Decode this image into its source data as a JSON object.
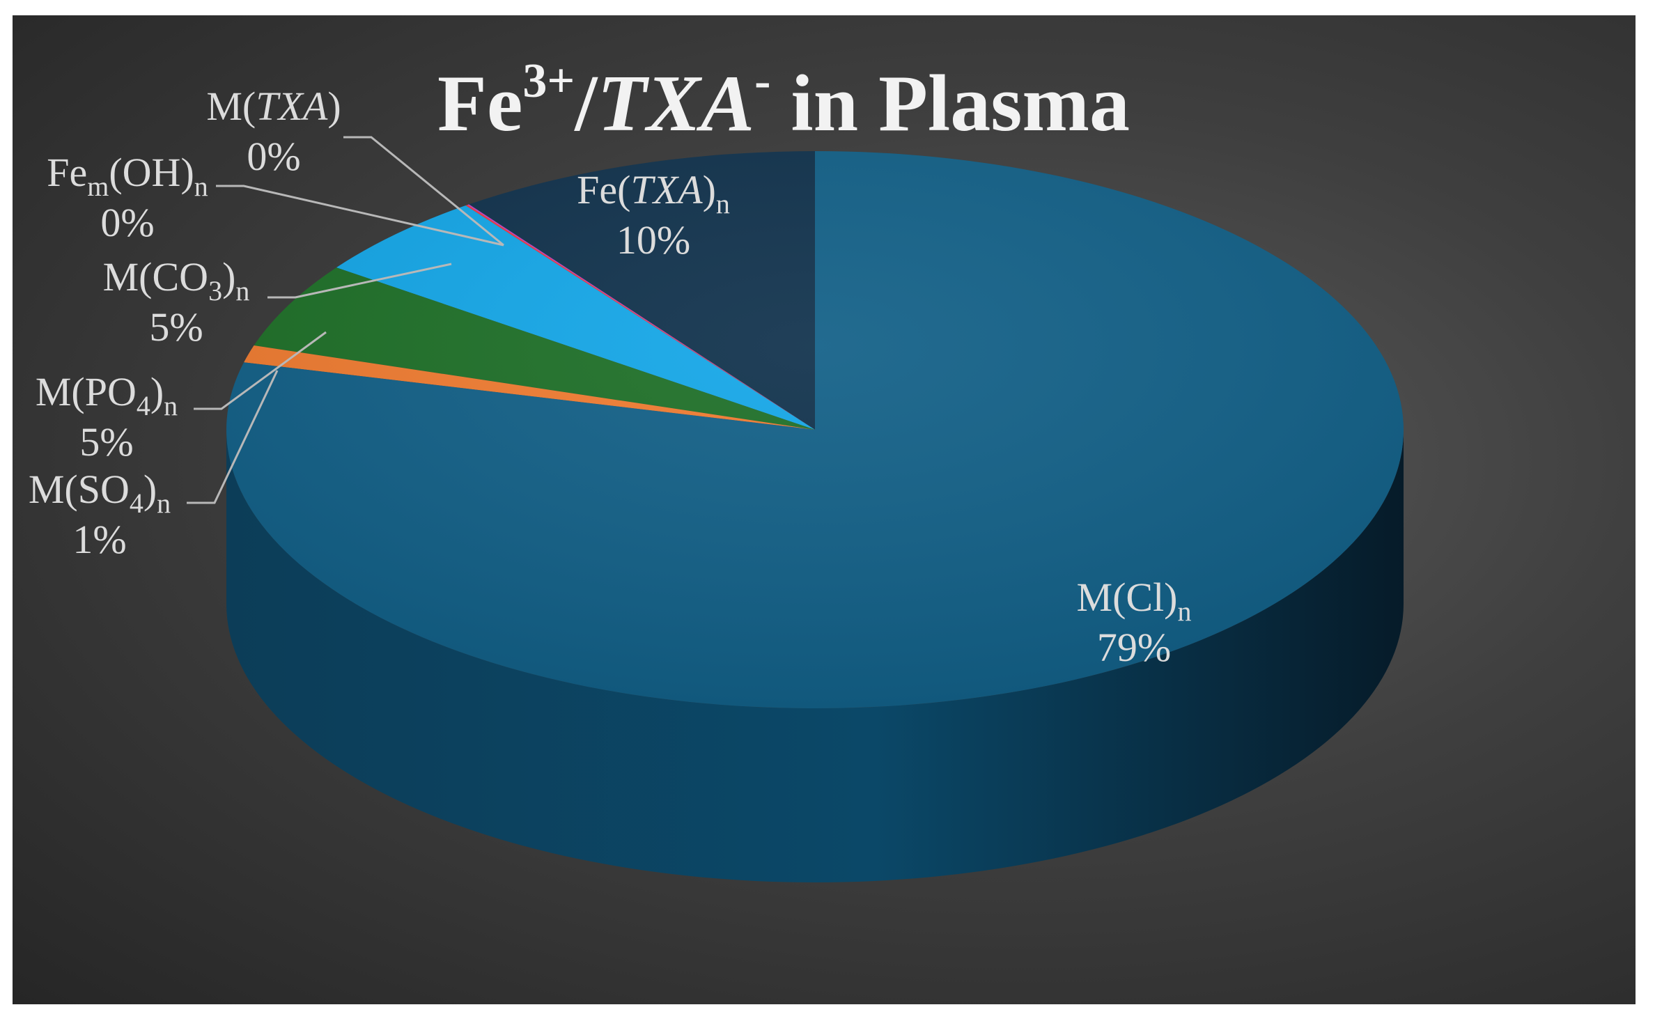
{
  "chart_data": {
    "type": "pie",
    "title": {
      "prefix": "Fe",
      "sup": "3+",
      "slash": "/",
      "italic": "TXA",
      "sup2": "-",
      "suffix": " in Plasma"
    },
    "slices": [
      {
        "name": "Fe(TXA)n",
        "base": "Fe(",
        "italic": "TXA",
        "close": ")",
        "sub": "n",
        "mid": "",
        "value": 10,
        "label": "10%",
        "color": "#0d2f4a"
      },
      {
        "name": "M(TXA)",
        "base": "M(",
        "italic": "TXA",
        "close": ")",
        "sub": "",
        "mid": "",
        "value": 0,
        "label": "0%",
        "color": "#c040c0"
      },
      {
        "name": "Fem(OH)n",
        "base": "Fe",
        "italic": "",
        "close": "(OH)",
        "sub": "n",
        "mid": "m",
        "value": 0,
        "label": "0%",
        "color": "#ff3333"
      },
      {
        "name": "M(CO3)n",
        "base": "M(CO",
        "italic": "",
        "close": ")",
        "sub": "n",
        "mid": "3",
        "value": 5,
        "label": "5%",
        "color": "#11a6e8"
      },
      {
        "name": "M(PO4)n",
        "base": "M(PO",
        "italic": "",
        "close": ")",
        "sub": "n",
        "mid": "4",
        "value": 5,
        "label": "5%",
        "color": "#1b6e25"
      },
      {
        "name": "M(SO4)n",
        "base": "M(SO",
        "italic": "",
        "close": ")",
        "sub": "n",
        "mid": "4",
        "value": 1,
        "label": "1%",
        "color": "#f07a2e"
      },
      {
        "name": "M(Cl)n",
        "base": "M(Cl)",
        "italic": "",
        "close": "",
        "sub": "n",
        "mid": "",
        "value": 79,
        "label": "79%",
        "color": "#0f5e86"
      }
    ]
  }
}
